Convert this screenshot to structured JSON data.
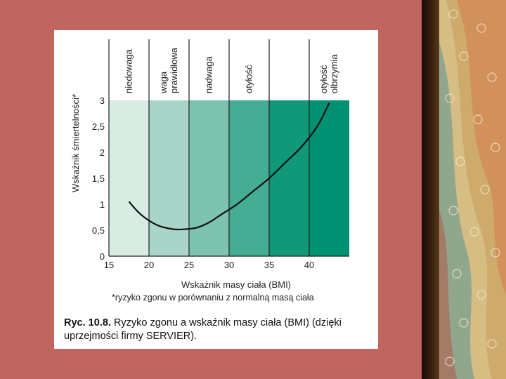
{
  "chart_data": {
    "type": "line",
    "ylabel": "Wskaźnik śmiertelności*",
    "xlabel": "Wskaźnik masy ciała (BMI)",
    "xlim": [
      15,
      45
    ],
    "ylim": [
      0,
      3
    ],
    "x_ticks": [
      15,
      20,
      25,
      30,
      35,
      40
    ],
    "x_tick_labels": [
      "15",
      "20",
      "25",
      "30",
      "35",
      "40"
    ],
    "y_ticks": [
      0,
      0.5,
      1,
      1.5,
      2,
      2.5,
      3
    ],
    "y_tick_labels": [
      "0",
      "0,5",
      "1",
      "1,5",
      "2",
      "2,5",
      "3"
    ],
    "bands": [
      {
        "from": 15,
        "to": 20,
        "label": "niedowaga",
        "color": "#d8ece4"
      },
      {
        "from": 20,
        "to": 25,
        "label": "waga prawidłowa",
        "color": "#a9d5c8"
      },
      {
        "from": 25,
        "to": 30,
        "label": "nadwaga",
        "color": "#7cc3b0"
      },
      {
        "from": 30,
        "to": 35,
        "label": "otyłość",
        "color": "#45ad94"
      },
      {
        "from": 35,
        "to": 40,
        "label": "otyłość olbrzymia",
        "color": "#109878"
      },
      {
        "from": 40,
        "to": 45,
        "label": "",
        "color": "#009072"
      }
    ],
    "band_labels": [
      {
        "lines": [
          "niedowaga"
        ],
        "at": 17.5
      },
      {
        "lines": [
          "waga",
          "prawidłowa"
        ],
        "at": 22.5
      },
      {
        "lines": [
          "nadwaga"
        ],
        "at": 27.5
      },
      {
        "lines": [
          "otyłość"
        ],
        "at": 32.5
      },
      {
        "lines": [
          "otyłość",
          "olbrzymia"
        ],
        "at": 42.5
      }
    ],
    "series": [
      {
        "x": [
          17.5,
          19,
          21,
          23,
          24.5,
          26,
          27.5,
          29,
          31,
          33,
          35,
          37,
          39,
          41,
          42.5
        ],
        "y": [
          1.05,
          0.8,
          0.6,
          0.52,
          0.52,
          0.55,
          0.65,
          0.8,
          1.0,
          1.25,
          1.5,
          1.8,
          2.1,
          2.5,
          2.95
        ]
      }
    ],
    "grid": false,
    "footnote": "*ryzyko zgonu w porównaniu z normalną masą ciała",
    "caption_bold": "Ryc. 10.8.",
    "caption_text": " Ryzyko zgonu a wskaźnik masy ciała (BMI) (dzięki uprzejmości firmy SERVIER)."
  },
  "theme": {
    "slide_background": "#c06560",
    "decor_panel": "#d8c188",
    "curve_color": "#111111"
  }
}
